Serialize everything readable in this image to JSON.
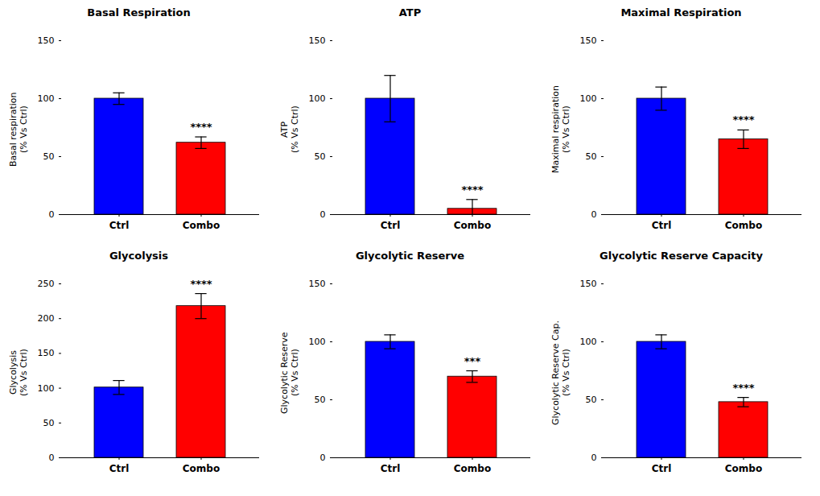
{
  "chart_data": [
    {
      "type": "bar",
      "title": "Basal Respiration",
      "ylabel": "Basal respiration\n(% Vs Ctrl)",
      "categories": [
        "Ctrl",
        "Combo"
      ],
      "values": [
        100,
        62
      ],
      "errors": [
        5,
        5
      ],
      "colors": [
        "#0000FF",
        "#FF0000"
      ],
      "ylim": [
        0,
        150
      ],
      "yticks": [
        0,
        50,
        100,
        150
      ],
      "grid": false,
      "annotations": [
        {
          "text": "****",
          "x": "Combo"
        }
      ]
    },
    {
      "type": "bar",
      "title": "ATP",
      "ylabel": "ATP\n(% Vs Ctrl)",
      "categories": [
        "Ctrl",
        "Combo"
      ],
      "values": [
        100,
        5
      ],
      "errors": [
        20,
        8
      ],
      "colors": [
        "#0000FF",
        "#FF0000"
      ],
      "ylim": [
        0,
        150
      ],
      "yticks": [
        0,
        50,
        100,
        150
      ],
      "grid": false,
      "annotations": [
        {
          "text": "****",
          "x": "Combo"
        }
      ]
    },
    {
      "type": "bar",
      "title": "Maximal Respiration",
      "ylabel": "Maximal respiration\n(% Vs Ctrl)",
      "categories": [
        "Ctrl",
        "Combo"
      ],
      "values": [
        100,
        65
      ],
      "errors": [
        10,
        8
      ],
      "colors": [
        "#0000FF",
        "#FF0000"
      ],
      "ylim": [
        0,
        150
      ],
      "yticks": [
        0,
        50,
        100,
        150
      ],
      "grid": false,
      "annotations": [
        {
          "text": "****",
          "x": "Combo"
        }
      ]
    },
    {
      "type": "bar",
      "title": "Glycolysis",
      "ylabel": "Glycolysis\n(% Vs Ctrl)",
      "categories": [
        "Ctrl",
        "Combo"
      ],
      "values": [
        101,
        218
      ],
      "errors": [
        10,
        18
      ],
      "colors": [
        "#0000FF",
        "#FF0000"
      ],
      "ylim": [
        0,
        250
      ],
      "yticks": [
        0,
        50,
        100,
        150,
        200,
        250
      ],
      "grid": false,
      "annotations": [
        {
          "text": "****",
          "x": "Combo"
        }
      ]
    },
    {
      "type": "bar",
      "title": "Glycolytic Reserve",
      "ylabel": "Glycolytic Reserve\n(% Vs Ctrl)",
      "categories": [
        "Ctrl",
        "Combo"
      ],
      "values": [
        100,
        70
      ],
      "errors": [
        6,
        5
      ],
      "colors": [
        "#0000FF",
        "#FF0000"
      ],
      "ylim": [
        0,
        150
      ],
      "yticks": [
        0,
        50,
        100,
        150
      ],
      "grid": false,
      "annotations": [
        {
          "text": "***",
          "x": "Combo"
        }
      ]
    },
    {
      "type": "bar",
      "title": "Glycolytic Reserve Capacity",
      "ylabel": "Glycolytic Reserve Cap.\n(% Vs Ctrl)",
      "categories": [
        "Ctrl",
        "Combo"
      ],
      "values": [
        100,
        48
      ],
      "errors": [
        6,
        4
      ],
      "colors": [
        "#0000FF",
        "#FF0000"
      ],
      "ylim": [
        0,
        150
      ],
      "yticks": [
        0,
        50,
        100,
        150
      ],
      "grid": false,
      "annotations": [
        {
          "text": "****",
          "x": "Combo"
        }
      ]
    }
  ]
}
